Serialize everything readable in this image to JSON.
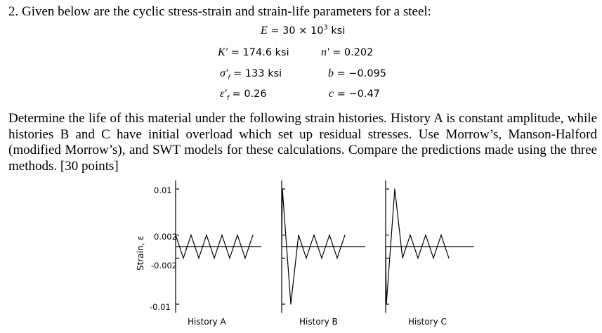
{
  "question": {
    "title": "2. Given below are the cyclic stress-strain and strain-life parameters for a steel:"
  },
  "parameters": {
    "E_symbol": "E",
    "E_value": "= 30 × 10",
    "E_exp": "3",
    "E_unit": "ksi",
    "K_symbol": "K′",
    "K_value": "= 174.6 ksi",
    "n_symbol": "n′",
    "n_value": "= 0.202",
    "sf_symbol": "σ′",
    "sf_sub": "f",
    "sf_value": "= 133 ksi",
    "b_symbol": "b",
    "b_value": "= −0.095",
    "ef_symbol": "ε′",
    "ef_sub": "f",
    "ef_value": "= 0.26",
    "c_symbol": "c",
    "c_value": "= −0.47"
  },
  "body": {
    "paragraph": "Determine the life of this material under the following strain histories. History A is constant amplitude, while histories B and C have initial overload which set up residual stresses. Use Morrow’s, Manson-Halford (modified Morrow’s), and SWT models for these calculations. Compare the predictions made using the three methods. [30 points]"
  },
  "figure": {
    "y_axis_label": "Strain, ε",
    "y_ticks": [
      "0.01",
      "0.002",
      "-0.002",
      "-0.01"
    ],
    "captions": [
      "History A",
      "History B",
      "History C"
    ],
    "line_color": "#000000"
  },
  "chart_data": {
    "type": "line",
    "ylabel": "Strain, ε",
    "y_ticks": [
      0.01,
      0.002,
      -0.002,
      -0.01
    ],
    "ylim": [
      -0.01,
      0.01
    ],
    "series": [
      {
        "name": "History A",
        "values": [
          0.002,
          -0.002,
          0.002,
          -0.002,
          0.002,
          -0.002,
          0.002,
          -0.002,
          0.002,
          -0.002,
          0.002
        ]
      },
      {
        "name": "History B",
        "values": [
          0.0,
          0.01,
          -0.01,
          0.002,
          -0.002,
          0.002,
          -0.002,
          0.002,
          -0.002,
          0.002
        ]
      },
      {
        "name": "History C",
        "values": [
          0.0,
          -0.01,
          0.01,
          -0.002,
          0.002,
          -0.002,
          0.002,
          -0.002,
          0.002,
          -0.002
        ]
      }
    ]
  }
}
